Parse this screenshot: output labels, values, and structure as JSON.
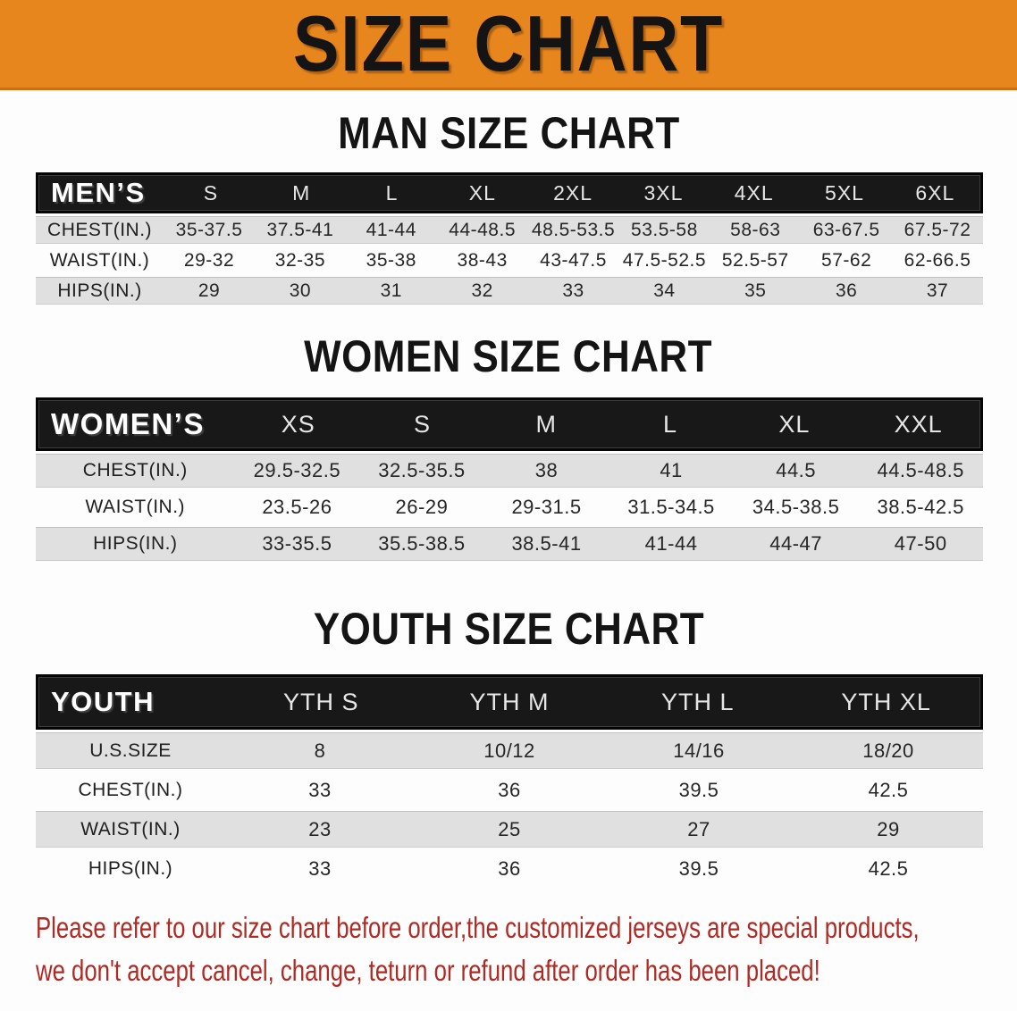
{
  "banner": {
    "title": "SIZE CHART"
  },
  "colors": {
    "banner_bg": "#e8861e",
    "banner_edge": "#cd6f10",
    "header_bg": "#181818",
    "row_shade": "#e0e0e0",
    "row_plain": "#fdfdfd",
    "disclaimer": "#b02a24"
  },
  "sections": [
    {
      "id": "men",
      "heading": "MAN SIZE CHART",
      "table": {
        "corner_label": "MEN’S",
        "columns": [
          "S",
          "M",
          "L",
          "XL",
          "2XL",
          "3XL",
          "4XL",
          "5XL",
          "6XL"
        ],
        "rows": [
          {
            "label": "CHEST(IN.)",
            "values": [
              "35-37.5",
              "37.5-41",
              "41-44",
              "44-48.5",
              "48.5-53.5",
              "53.5-58",
              "58-63",
              "63-67.5",
              "67.5-72"
            ]
          },
          {
            "label": "WAIST(IN.)",
            "values": [
              "29-32",
              "32-35",
              "35-38",
              "38-43",
              "43-47.5",
              "47.5-52.5",
              "52.5-57",
              "57-62",
              "62-66.5"
            ]
          },
          {
            "label": "HIPS(IN.)",
            "values": [
              "29",
              "30",
              "31",
              "32",
              "33",
              "34",
              "35",
              "36",
              "37"
            ]
          }
        ]
      }
    },
    {
      "id": "women",
      "heading": "WOMEN SIZE CHART",
      "table": {
        "corner_label": "WOMEN’S",
        "columns": [
          "XS",
          "S",
          "M",
          "L",
          "XL",
          "XXL"
        ],
        "rows": [
          {
            "label": "CHEST(IN.)",
            "values": [
              "29.5-32.5",
              "32.5-35.5",
              "38",
              "41",
              "44.5",
              "44.5-48.5"
            ]
          },
          {
            "label": "WAIST(IN.)",
            "values": [
              "23.5-26",
              "26-29",
              "29-31.5",
              "31.5-34.5",
              "34.5-38.5",
              "38.5-42.5"
            ]
          },
          {
            "label": "HIPS(IN.)",
            "values": [
              "33-35.5",
              "35.5-38.5",
              "38.5-41",
              "41-44",
              "44-47",
              "47-50"
            ]
          }
        ]
      }
    },
    {
      "id": "youth",
      "heading": "YOUTH SIZE CHART",
      "table": {
        "corner_label": "YOUTH",
        "columns": [
          "YTH S",
          "YTH M",
          "YTH L",
          "YTH XL"
        ],
        "rows": [
          {
            "label": "U.S.SIZE",
            "values": [
              "8",
              "10/12",
              "14/16",
              "18/20"
            ]
          },
          {
            "label": "CHEST(IN.)",
            "values": [
              "33",
              "36",
              "39.5",
              "42.5"
            ]
          },
          {
            "label": "WAIST(IN.)",
            "values": [
              "23",
              "25",
              "27",
              "29"
            ]
          },
          {
            "label": "HIPS(IN.)",
            "values": [
              "33",
              "36",
              "39.5",
              "42.5"
            ]
          }
        ]
      }
    }
  ],
  "disclaimer": {
    "line1": "Please refer to our size chart before order,the customized jerseys are special products,",
    "line2": "we don't accept cancel, change, teturn or refund after order has been placed!"
  }
}
